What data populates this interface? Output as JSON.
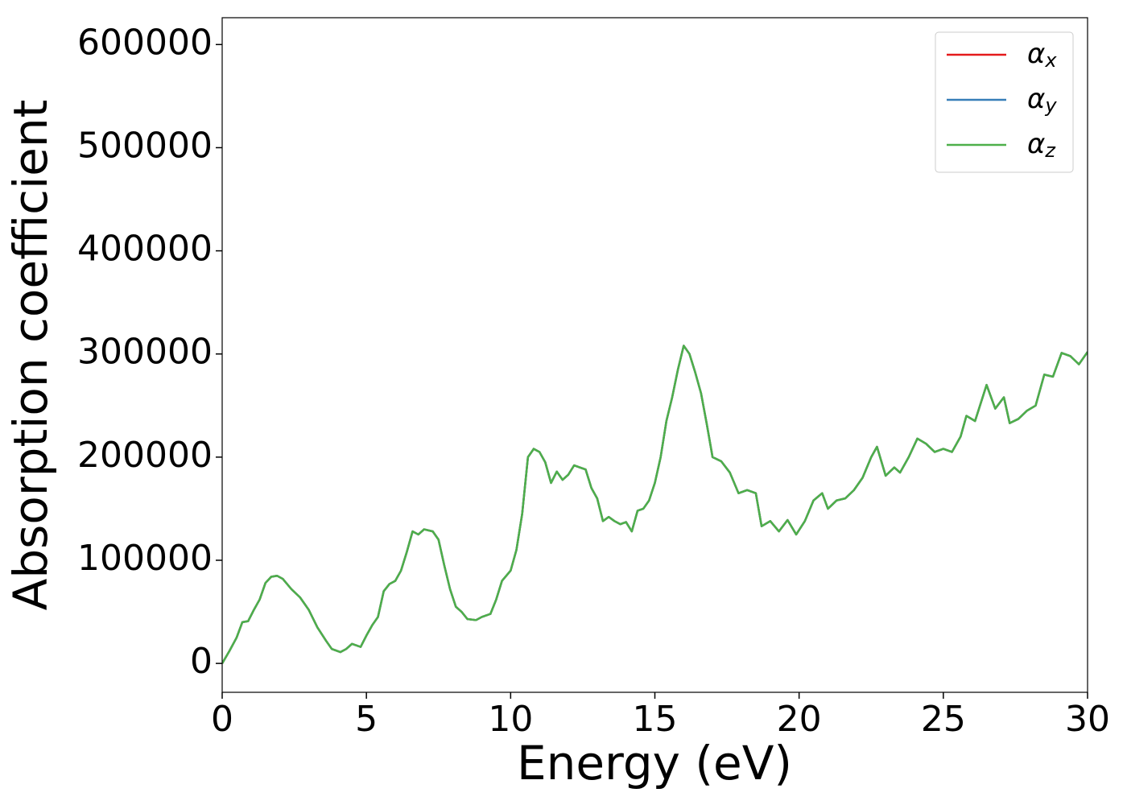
{
  "chart_data": {
    "type": "line",
    "xlabel": "Energy (eV)",
    "ylabel": "Absorption coefficient",
    "x": [
      0,
      0.25,
      0.5,
      0.7,
      0.9,
      1.1,
      1.3,
      1.5,
      1.7,
      1.9,
      2.1,
      2.4,
      2.7,
      3.0,
      3.3,
      3.6,
      3.8,
      4.1,
      4.3,
      4.5,
      4.8,
      5.0,
      5.2,
      5.4,
      5.6,
      5.8,
      6.0,
      6.2,
      6.4,
      6.6,
      6.8,
      7.0,
      7.3,
      7.5,
      7.7,
      7.9,
      8.1,
      8.3,
      8.5,
      8.8,
      9.0,
      9.3,
      9.5,
      9.7,
      10.0,
      10.2,
      10.4,
      10.6,
      10.8,
      11.0,
      11.2,
      11.4,
      11.6,
      11.8,
      12.0,
      12.2,
      12.4,
      12.6,
      12.8,
      13.0,
      13.2,
      13.4,
      13.6,
      13.8,
      14.0,
      14.2,
      14.4,
      14.6,
      14.8,
      15.0,
      15.2,
      15.4,
      15.6,
      15.8,
      16.0,
      16.2,
      16.4,
      16.6,
      16.8,
      17.0,
      17.3,
      17.6,
      17.9,
      18.2,
      18.5,
      18.7,
      19.0,
      19.3,
      19.6,
      19.9,
      20.2,
      20.5,
      20.8,
      21.0,
      21.3,
      21.6,
      21.9,
      22.2,
      22.5,
      22.7,
      23.0,
      23.3,
      23.5,
      23.8,
      24.1,
      24.4,
      24.7,
      25.0,
      25.3,
      25.6,
      25.8,
      26.1,
      26.5,
      26.8,
      27.1,
      27.3,
      27.6,
      27.9,
      28.2,
      28.5,
      28.8,
      29.1,
      29.4,
      29.7,
      30.0
    ],
    "series": [
      {
        "name": "αx",
        "color": "#e41a1c",
        "values": [
          0,
          12000,
          25000,
          40000,
          41000,
          52000,
          62000,
          78000,
          84000,
          85000,
          82000,
          72000,
          64000,
          52000,
          35000,
          22000,
          14000,
          11000,
          14000,
          19000,
          16000,
          27000,
          37000,
          45000,
          70000,
          77000,
          80000,
          90000,
          108000,
          128000,
          125000,
          130000,
          128000,
          120000,
          95000,
          72000,
          55000,
          50000,
          43000,
          42000,
          45000,
          48000,
          62000,
          80000,
          90000,
          110000,
          145000,
          200000,
          208000,
          205000,
          195000,
          175000,
          186000,
          178000,
          183000,
          192000,
          190000,
          188000,
          170000,
          160000,
          138000,
          142000,
          138000,
          135000,
          137000,
          128000,
          148000,
          150000,
          158000,
          175000,
          200000,
          235000,
          258000,
          285000,
          308000,
          300000,
          282000,
          262000,
          232000,
          200000,
          196000,
          185000,
          165000,
          168000,
          165000,
          133000,
          138000,
          128000,
          139000,
          125000,
          138000,
          158000,
          165000,
          150000,
          158000,
          160000,
          168000,
          180000,
          200000,
          210000,
          182000,
          190000,
          185000,
          200000,
          218000,
          213000,
          205000,
          208000,
          205000,
          220000,
          240000,
          235000,
          270000,
          247000,
          258000,
          233000,
          237000,
          245000,
          250000,
          280000,
          278000,
          301000,
          298000,
          290000,
          302000
        ]
      },
      {
        "name": "αy",
        "color": "#377eb8",
        "values": [
          0,
          12000,
          25000,
          40000,
          41000,
          52000,
          62000,
          78000,
          84000,
          85000,
          82000,
          72000,
          64000,
          52000,
          35000,
          22000,
          14000,
          11000,
          14000,
          19000,
          16000,
          27000,
          37000,
          45000,
          70000,
          77000,
          80000,
          90000,
          108000,
          128000,
          125000,
          130000,
          128000,
          120000,
          95000,
          72000,
          55000,
          50000,
          43000,
          42000,
          45000,
          48000,
          62000,
          80000,
          90000,
          110000,
          145000,
          200000,
          208000,
          205000,
          195000,
          175000,
          186000,
          178000,
          183000,
          192000,
          190000,
          188000,
          170000,
          160000,
          138000,
          142000,
          138000,
          135000,
          137000,
          128000,
          148000,
          150000,
          158000,
          175000,
          200000,
          235000,
          258000,
          285000,
          308000,
          300000,
          282000,
          262000,
          232000,
          200000,
          196000,
          185000,
          165000,
          168000,
          165000,
          133000,
          138000,
          128000,
          139000,
          125000,
          138000,
          158000,
          165000,
          150000,
          158000,
          160000,
          168000,
          180000,
          200000,
          210000,
          182000,
          190000,
          185000,
          200000,
          218000,
          213000,
          205000,
          208000,
          205000,
          220000,
          240000,
          235000,
          270000,
          247000,
          258000,
          233000,
          237000,
          245000,
          250000,
          280000,
          278000,
          301000,
          298000,
          290000,
          302000
        ]
      },
      {
        "name": "αz",
        "color": "#4daf4a",
        "values": [
          0,
          12000,
          25000,
          40000,
          41000,
          52000,
          62000,
          78000,
          84000,
          85000,
          82000,
          72000,
          64000,
          52000,
          35000,
          22000,
          14000,
          11000,
          14000,
          19000,
          16000,
          27000,
          37000,
          45000,
          70000,
          77000,
          80000,
          90000,
          108000,
          128000,
          125000,
          130000,
          128000,
          120000,
          95000,
          72000,
          55000,
          50000,
          43000,
          42000,
          45000,
          48000,
          62000,
          80000,
          90000,
          110000,
          145000,
          200000,
          208000,
          205000,
          195000,
          175000,
          186000,
          178000,
          183000,
          192000,
          190000,
          188000,
          170000,
          160000,
          138000,
          142000,
          138000,
          135000,
          137000,
          128000,
          148000,
          150000,
          158000,
          175000,
          200000,
          235000,
          258000,
          285000,
          308000,
          300000,
          282000,
          262000,
          232000,
          200000,
          196000,
          185000,
          165000,
          168000,
          165000,
          133000,
          138000,
          128000,
          139000,
          125000,
          138000,
          158000,
          165000,
          150000,
          158000,
          160000,
          168000,
          180000,
          200000,
          210000,
          182000,
          190000,
          185000,
          200000,
          218000,
          213000,
          205000,
          208000,
          205000,
          220000,
          240000,
          235000,
          270000,
          247000,
          258000,
          233000,
          237000,
          245000,
          250000,
          280000,
          278000,
          301000,
          298000,
          290000,
          302000
        ]
      }
    ],
    "xlim": [
      0,
      30
    ],
    "xticks": [
      0,
      5,
      10,
      15,
      20,
      25,
      30
    ],
    "ylim": [
      -28000,
      626000
    ],
    "yticks": [
      0,
      100000,
      200000,
      300000,
      400000,
      500000,
      600000
    ],
    "grid": false,
    "legend": "upper right"
  }
}
